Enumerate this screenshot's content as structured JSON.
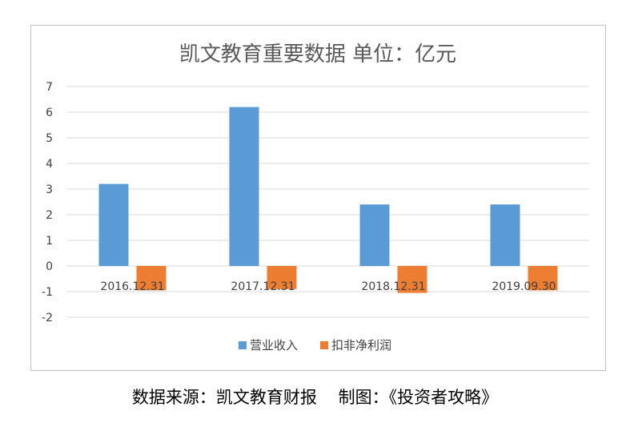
{
  "chart_data": {
    "type": "bar",
    "title": "凯文教育重要数据  单位：亿元",
    "categories": [
      "2016.12.31",
      "2017.12.31",
      "2018.12.31",
      "2019.09.30"
    ],
    "series": [
      {
        "name": "营业收入",
        "values": [
          3.2,
          6.2,
          2.4,
          2.4
        ],
        "color": "#5b9bd5"
      },
      {
        "name": "扣非净利润",
        "values": [
          -0.95,
          -0.9,
          -1.05,
          -0.95
        ],
        "color": "#ed7d31"
      }
    ],
    "ylim": [
      -2,
      7
    ],
    "yticks": [
      "7",
      "6",
      "5",
      "4",
      "3",
      "2",
      "1",
      "0",
      "-1",
      "-2"
    ],
    "grid": true,
    "legend_position": "bottom"
  },
  "caption": "数据来源：凯文教育财报    制图：《投资者攻略》"
}
